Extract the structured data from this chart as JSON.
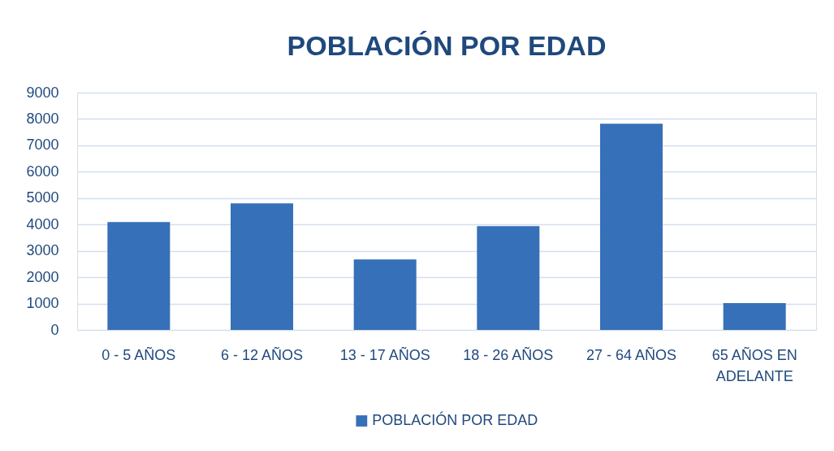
{
  "chart_data": {
    "type": "bar",
    "title": "POBLACIÓN POR EDAD",
    "categories": [
      "0 - 5 AÑOS",
      "6 - 12 AÑOS",
      "13 - 17 AÑOS",
      "18 - 26 AÑOS",
      "27 - 64 AÑOS",
      "65 AÑOS EN ADELANTE"
    ],
    "series": [
      {
        "name": "POBLACIÓN POR EDAD",
        "color": "#3670b8",
        "values": [
          4090,
          4800,
          2670,
          3940,
          7820,
          1020
        ]
      }
    ],
    "ylim": [
      0,
      9000
    ],
    "yticks": [
      0,
      1000,
      2000,
      3000,
      4000,
      5000,
      6000,
      7000,
      8000,
      9000
    ],
    "grid": "y",
    "legend": "bottom"
  }
}
